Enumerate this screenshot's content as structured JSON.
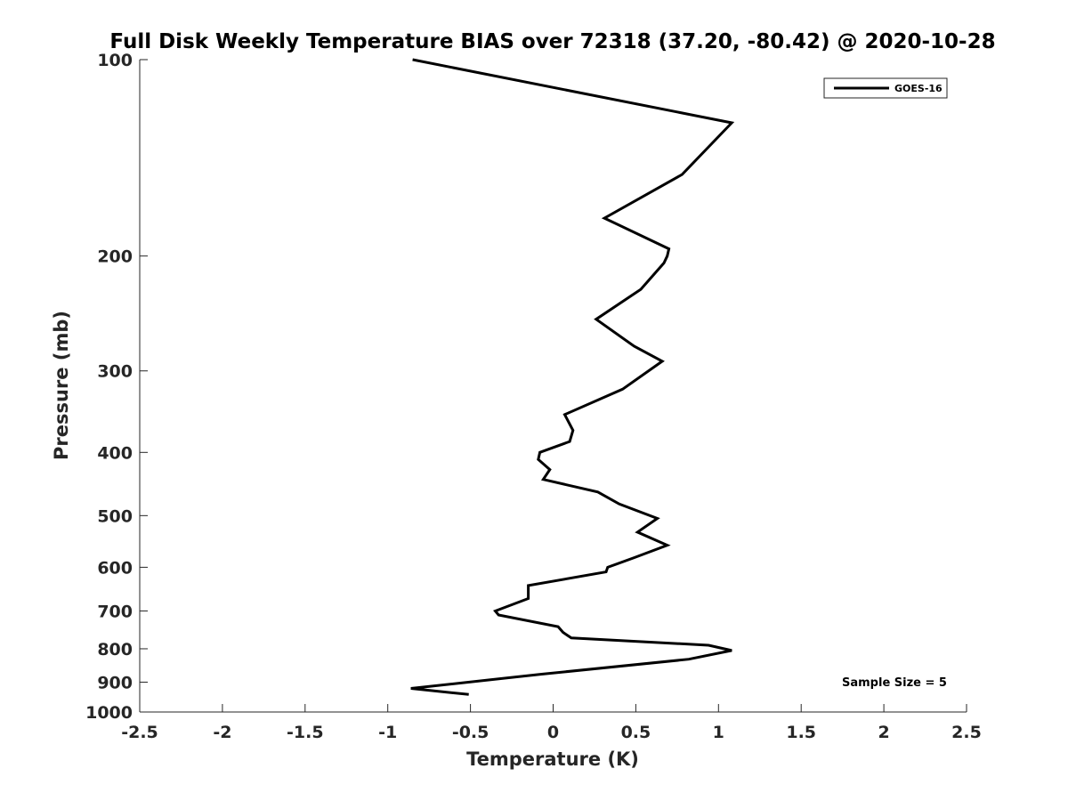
{
  "chart_data": {
    "type": "line",
    "title": "Full Disk Weekly Temperature BIAS over 72318 (37.20, -80.42) @ 2020-10-28",
    "xlabel": "Temperature (K)",
    "ylabel": "Pressure (mb)",
    "xlim": [
      -2.5,
      2.5
    ],
    "ylim": [
      100,
      1000
    ],
    "y_scale": "log",
    "y_reversed": true,
    "grid": false,
    "x_ticks": [
      "-2.5",
      "-2",
      "-1.5",
      "-1",
      "-0.5",
      "0",
      "0.5",
      "1",
      "1.5",
      "2",
      "2.5"
    ],
    "y_ticks": [
      "100",
      "200",
      "300",
      "400",
      "500",
      "600",
      "700",
      "800",
      "900",
      "1000"
    ],
    "legend": {
      "position": "top-right",
      "entries": [
        "GOES-16"
      ]
    },
    "annotation": "Sample Size = 5",
    "series": [
      {
        "name": "GOES-16",
        "color": "#000000",
        "points": [
          [
            -0.85,
            100
          ],
          [
            1.08,
            125
          ],
          [
            0.78,
            150
          ],
          [
            0.31,
            175
          ],
          [
            0.7,
            195
          ],
          [
            0.69,
            200
          ],
          [
            0.67,
            205
          ],
          [
            0.53,
            225
          ],
          [
            0.26,
            250
          ],
          [
            0.49,
            275
          ],
          [
            0.66,
            290
          ],
          [
            0.42,
            320
          ],
          [
            0.07,
            350
          ],
          [
            0.12,
            370
          ],
          [
            0.1,
            385
          ],
          [
            -0.08,
            400
          ],
          [
            -0.09,
            410
          ],
          [
            -0.02,
            425
          ],
          [
            -0.06,
            440
          ],
          [
            0.27,
            460
          ],
          [
            0.4,
            480
          ],
          [
            0.63,
            505
          ],
          [
            0.51,
            530
          ],
          [
            0.69,
            555
          ],
          [
            0.49,
            580
          ],
          [
            0.33,
            600
          ],
          [
            0.32,
            610
          ],
          [
            -0.15,
            640
          ],
          [
            -0.15,
            670
          ],
          [
            -0.35,
            700
          ],
          [
            -0.33,
            710
          ],
          [
            0.03,
            740
          ],
          [
            0.06,
            755
          ],
          [
            0.11,
            770
          ],
          [
            0.94,
            790
          ],
          [
            1.08,
            805
          ],
          [
            0.82,
            830
          ],
          [
            -0.07,
            875
          ],
          [
            -0.86,
            920
          ],
          [
            -0.51,
            940
          ]
        ]
      }
    ]
  }
}
